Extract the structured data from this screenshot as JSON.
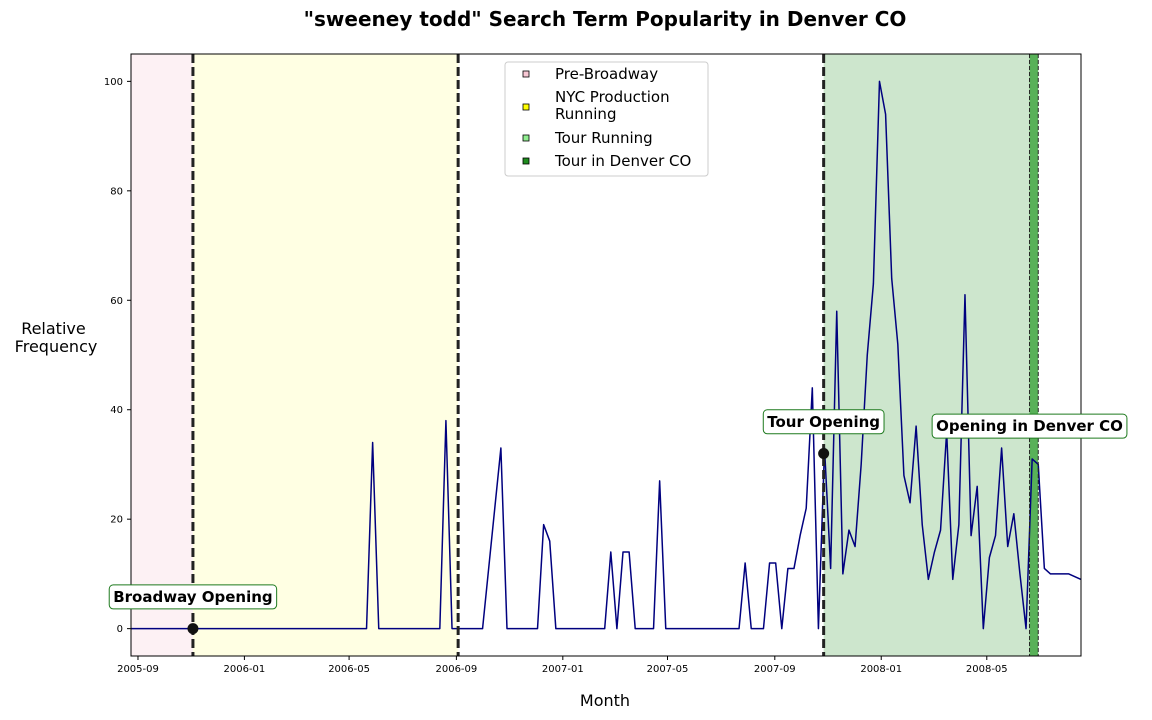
{
  "chart_data": {
    "type": "line",
    "title": "\"sweeney todd\" Search Term Popularity in Denver CO",
    "xlabel": "Month",
    "ylabel": [
      "Relative",
      "Frequency"
    ],
    "xlim": [
      "2005-08-24",
      "2008-08-17"
    ],
    "ylim": [
      -5,
      105
    ],
    "grid": false,
    "x_ticks": [
      {
        "date": "2005-09-01",
        "label": "2005-09"
      },
      {
        "date": "2006-01-01",
        "label": "2006-01"
      },
      {
        "date": "2006-05-01",
        "label": "2006-05"
      },
      {
        "date": "2006-09-01",
        "label": "2006-09"
      },
      {
        "date": "2007-01-01",
        "label": "2007-01"
      },
      {
        "date": "2007-05-01",
        "label": "2007-05"
      },
      {
        "date": "2007-09-01",
        "label": "2007-09"
      },
      {
        "date": "2008-01-01",
        "label": "2008-01"
      },
      {
        "date": "2008-05-01",
        "label": "2008-05"
      }
    ],
    "y_ticks": [
      0,
      20,
      40,
      60,
      80,
      100
    ],
    "shaded_periods": [
      {
        "name": "Pre-Broadway",
        "start": "2005-08-24",
        "end": "2005-11-03",
        "color": "#f8bfcc",
        "opacity": 0.22
      },
      {
        "name": "NYC Production Running",
        "start": "2005-11-03",
        "end": "2006-09-03",
        "color": "#ffff66",
        "opacity": 0.18
      },
      {
        "name": "Tour Running",
        "start": "2007-10-27",
        "end": "2008-06-19",
        "color": "#6db56d",
        "opacity": 0.34
      },
      {
        "name": "Tour in Denver CO",
        "start": "2008-06-19",
        "end": "2008-06-29",
        "color": "#2e9e2e",
        "opacity": 0.8
      }
    ],
    "vlines": [
      {
        "date": "2005-11-03",
        "style": "thick"
      },
      {
        "date": "2006-09-03",
        "style": "thick"
      },
      {
        "date": "2007-10-27",
        "style": "thick"
      },
      {
        "date": "2008-06-19",
        "style": "thin"
      },
      {
        "date": "2008-06-29",
        "style": "thin"
      }
    ],
    "legend": {
      "placement": "top-center",
      "entries": [
        {
          "lines": [
            "Pre-Broadway"
          ],
          "color": "#f8c8d4"
        },
        {
          "lines": [
            "NYC Production",
            "Running"
          ],
          "color": "#ffff00"
        },
        {
          "lines": [
            "Tour Running"
          ],
          "color": "#90ee90"
        },
        {
          "lines": [
            "Tour in Denver CO"
          ],
          "color": "#1e8c1e"
        }
      ]
    },
    "annotations": [
      {
        "text": "Broadway Opening",
        "date": "2005-11-03",
        "value": 0,
        "marker": true,
        "label_value": 5.8
      },
      {
        "text": "Tour Opening",
        "date": "2007-10-27",
        "value": 32,
        "marker": true,
        "label_value": 37.8
      },
      {
        "text": "Opening in Denver CO",
        "date": "2008-06-19",
        "value": null,
        "marker": false,
        "label_value": 37
      }
    ],
    "series": [
      {
        "color": "#00007f",
        "points": [
          [
            "2005-08-24",
            0
          ],
          [
            "2006-05-21",
            0
          ],
          [
            "2006-05-28",
            34
          ],
          [
            "2006-06-04",
            0
          ],
          [
            "2006-08-13",
            0
          ],
          [
            "2006-08-20",
            38
          ],
          [
            "2006-08-27",
            0
          ],
          [
            "2006-10-01",
            0
          ],
          [
            "2006-10-22",
            33
          ],
          [
            "2006-10-29",
            0
          ],
          [
            "2006-12-03",
            0
          ],
          [
            "2006-12-10",
            19
          ],
          [
            "2006-12-17",
            16
          ],
          [
            "2006-12-24",
            0
          ],
          [
            "2007-02-18",
            0
          ],
          [
            "2007-02-25",
            14
          ],
          [
            "2007-03-04",
            0
          ],
          [
            "2007-03-11",
            14
          ],
          [
            "2007-03-18",
            14
          ],
          [
            "2007-03-25",
            0
          ],
          [
            "2007-04-15",
            0
          ],
          [
            "2007-04-22",
            27
          ],
          [
            "2007-04-29",
            0
          ],
          [
            "2007-07-22",
            0
          ],
          [
            "2007-07-29",
            12
          ],
          [
            "2007-08-05",
            0
          ],
          [
            "2007-08-19",
            0
          ],
          [
            "2007-08-26",
            12
          ],
          [
            "2007-09-02",
            12
          ],
          [
            "2007-09-09",
            0
          ],
          [
            "2007-09-16",
            11
          ],
          [
            "2007-09-23",
            11
          ],
          [
            "2007-09-30",
            17
          ],
          [
            "2007-10-07",
            22
          ],
          [
            "2007-10-14",
            44
          ],
          [
            "2007-10-21",
            0
          ],
          [
            "2007-10-28",
            33
          ],
          [
            "2007-11-04",
            11
          ],
          [
            "2007-11-11",
            58
          ],
          [
            "2007-11-18",
            10
          ],
          [
            "2007-11-25",
            18
          ],
          [
            "2007-12-02",
            15
          ],
          [
            "2007-12-09",
            30
          ],
          [
            "2007-12-16",
            50
          ],
          [
            "2007-12-23",
            63
          ],
          [
            "2007-12-30",
            100
          ],
          [
            "2008-01-06",
            94
          ],
          [
            "2008-01-13",
            64
          ],
          [
            "2008-01-20",
            52
          ],
          [
            "2008-01-27",
            28
          ],
          [
            "2008-02-03",
            23
          ],
          [
            "2008-02-10",
            37
          ],
          [
            "2008-02-17",
            19
          ],
          [
            "2008-02-24",
            9
          ],
          [
            "2008-03-02",
            14
          ],
          [
            "2008-03-09",
            18
          ],
          [
            "2008-03-16",
            36
          ],
          [
            "2008-03-23",
            9
          ],
          [
            "2008-03-30",
            19
          ],
          [
            "2008-04-06",
            61
          ],
          [
            "2008-04-13",
            17
          ],
          [
            "2008-04-20",
            26
          ],
          [
            "2008-04-27",
            0
          ],
          [
            "2008-05-04",
            13
          ],
          [
            "2008-05-11",
            17
          ],
          [
            "2008-05-18",
            33
          ],
          [
            "2008-05-25",
            15
          ],
          [
            "2008-06-01",
            21
          ],
          [
            "2008-06-08",
            10
          ],
          [
            "2008-06-15",
            0
          ],
          [
            "2008-06-22",
            31
          ],
          [
            "2008-06-29",
            30
          ],
          [
            "2008-07-06",
            11
          ],
          [
            "2008-07-13",
            10
          ],
          [
            "2008-07-20",
            10
          ],
          [
            "2008-07-27",
            10
          ],
          [
            "2008-08-03",
            10
          ],
          [
            "2008-08-17",
            9
          ]
        ]
      }
    ]
  }
}
